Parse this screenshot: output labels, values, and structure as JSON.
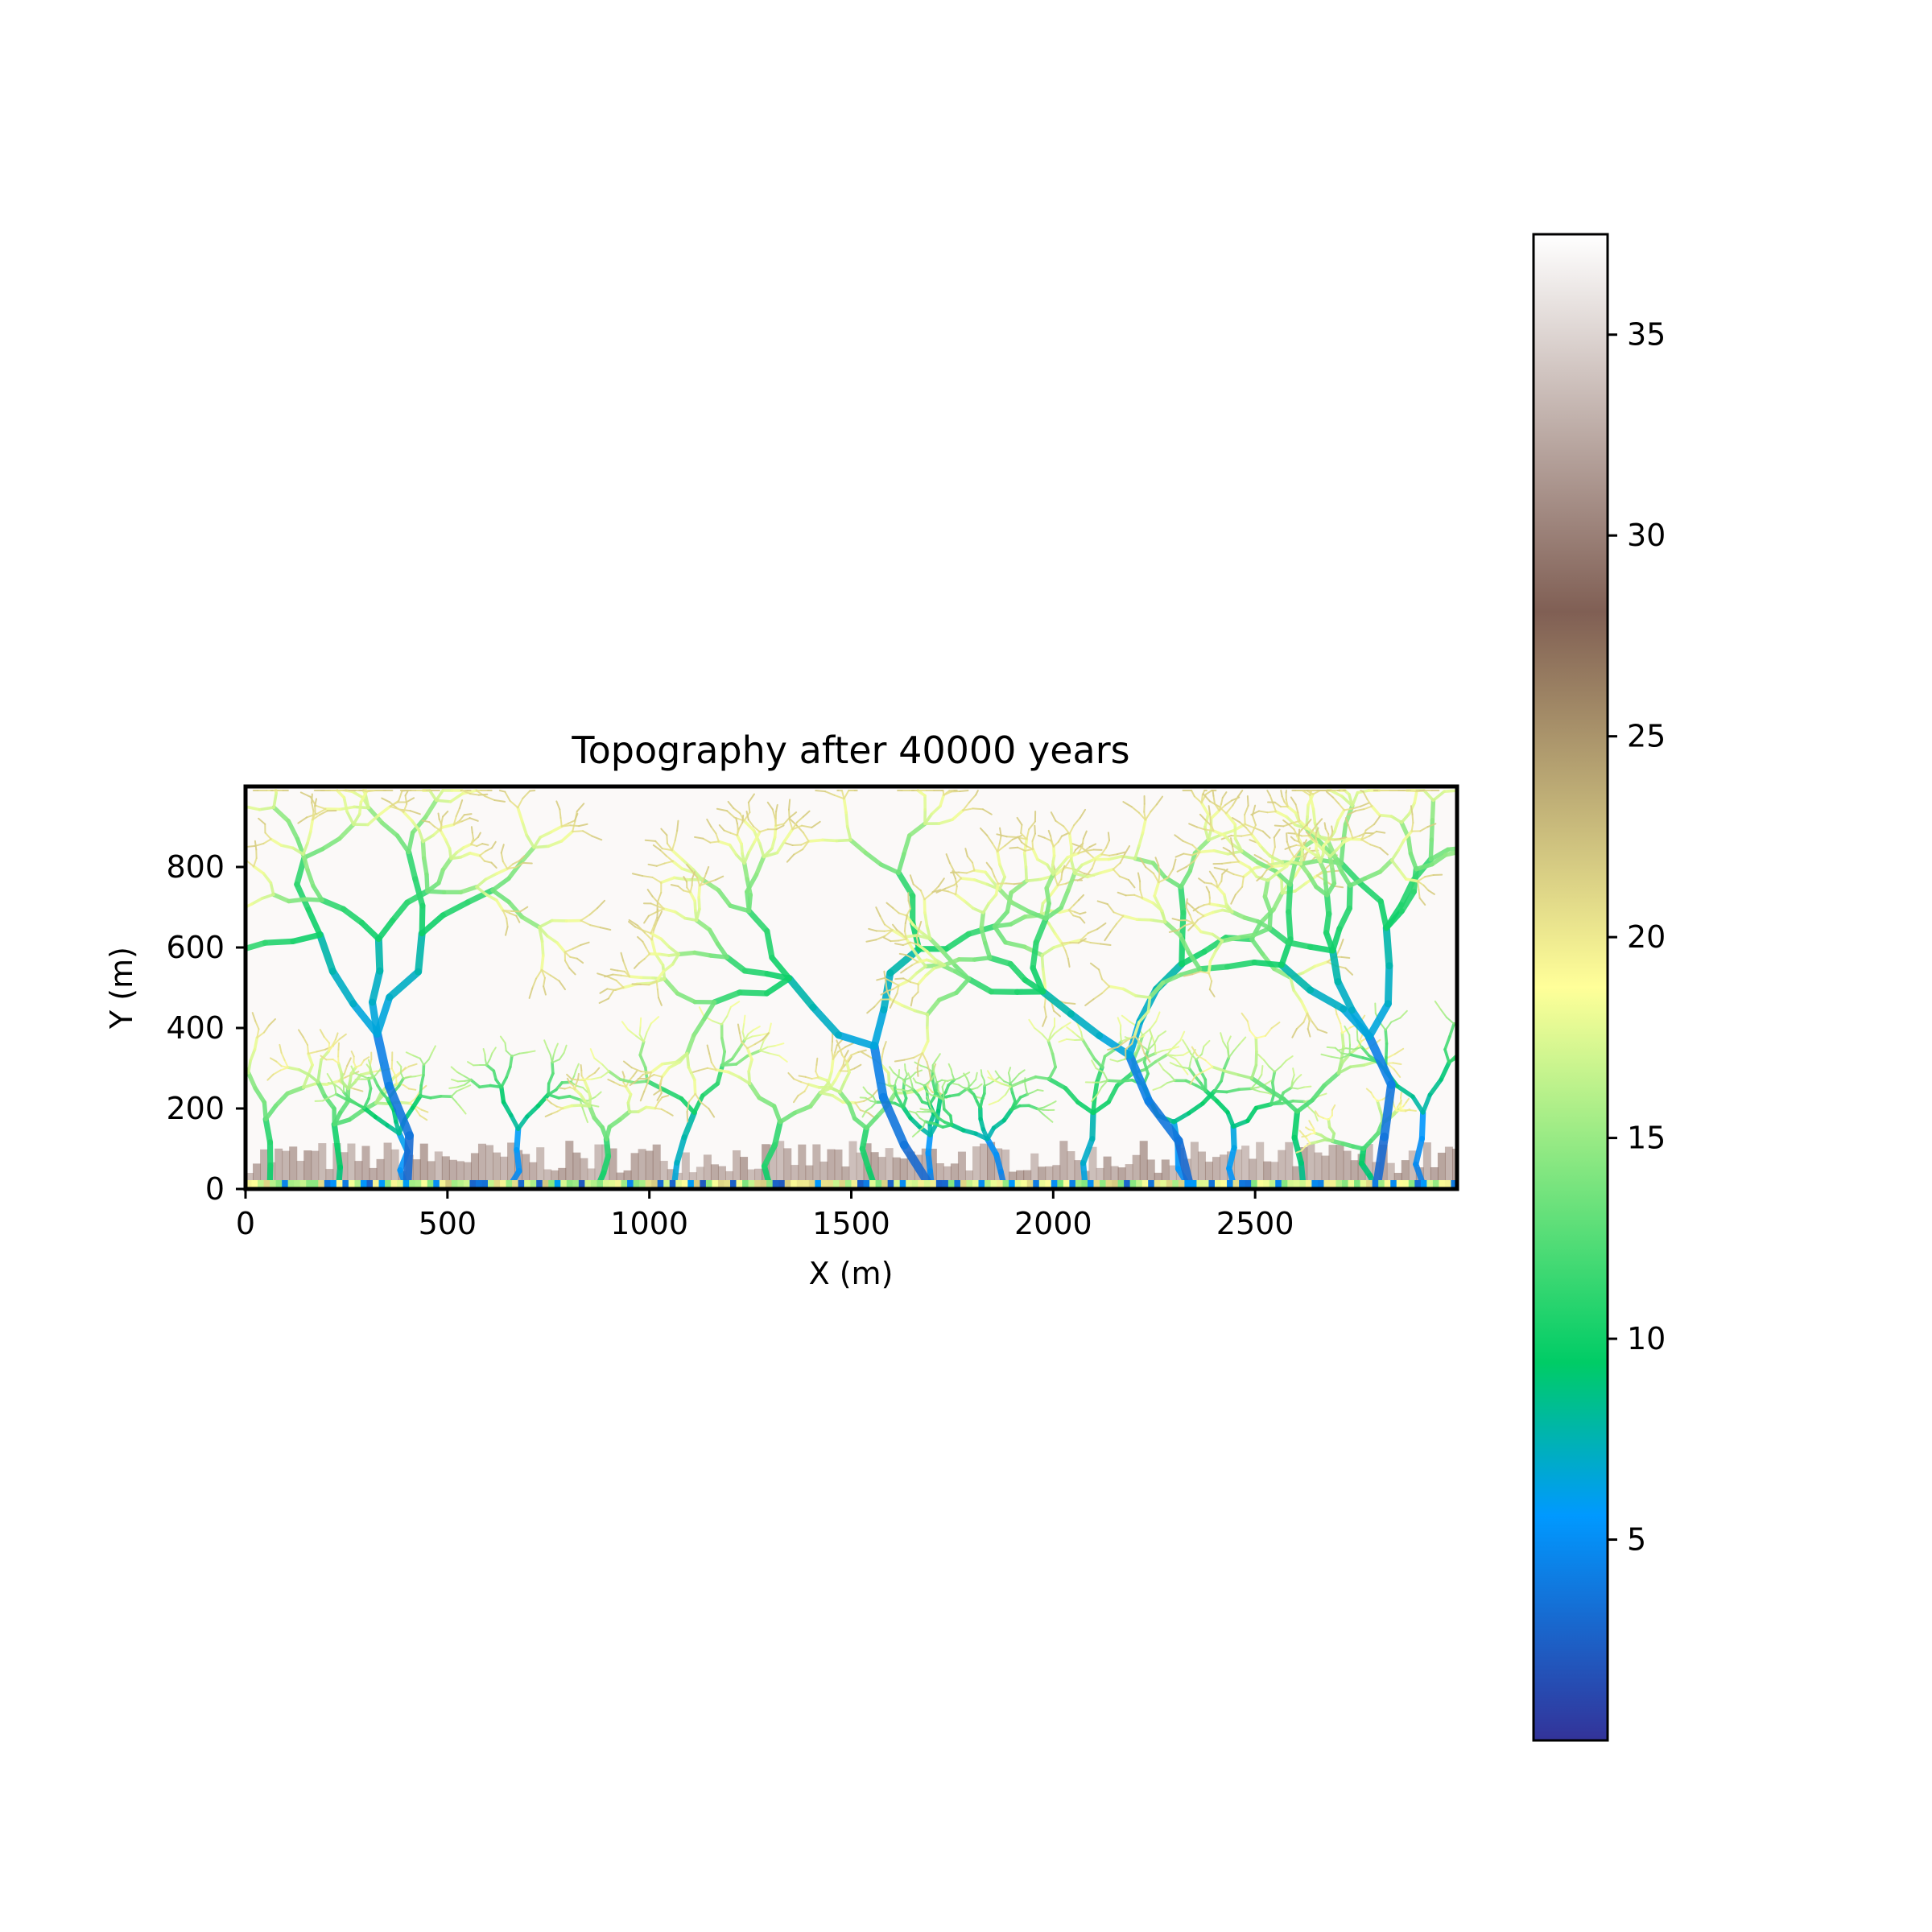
{
  "chart_data": {
    "type": "heatmap",
    "title": "Topography after 40000 years",
    "xlabel": "X (m)",
    "ylabel": "Y (m)",
    "xlim": [
      0,
      3000
    ],
    "ylim": [
      0,
      1000
    ],
    "x_ticks": [
      0,
      500,
      1000,
      1500,
      2000,
      2500
    ],
    "y_ticks": [
      0,
      200,
      400,
      600,
      800
    ],
    "colorbar": {
      "colormap": "terrain",
      "vmin": 0,
      "vmax": 37.5,
      "ticks": [
        5,
        10,
        15,
        20,
        25,
        30,
        35
      ],
      "stops": [
        {
          "value": 0,
          "color": "#333399"
        },
        {
          "value": 5.6,
          "color": "#0099ff"
        },
        {
          "value": 9.4,
          "color": "#00cc66"
        },
        {
          "value": 18.75,
          "color": "#ffff99"
        },
        {
          "value": 28.1,
          "color": "#805f54"
        },
        {
          "value": 37.5,
          "color": "#ffffff"
        }
      ]
    },
    "grid": false,
    "description_values": {
      "plateau_elevation": 37,
      "outlet_elevation": 0,
      "channel_outlets_x": [
        60,
        230,
        400,
        650,
        870,
        1060,
        1300,
        1560,
        1700,
        1880,
        2080,
        2340,
        2450,
        2620,
        2800,
        2920
      ],
      "main_valleys": [
        {
          "outlet_x": 400,
          "head": [
            300,
            880
          ]
        },
        {
          "outlet_x": 1700,
          "head": [
            1560,
            850
          ]
        },
        {
          "outlet_x": 2340,
          "head": [
            2150,
            800
          ]
        },
        {
          "outlet_x": 2800,
          "head": [
            2600,
            850
          ]
        }
      ]
    }
  }
}
